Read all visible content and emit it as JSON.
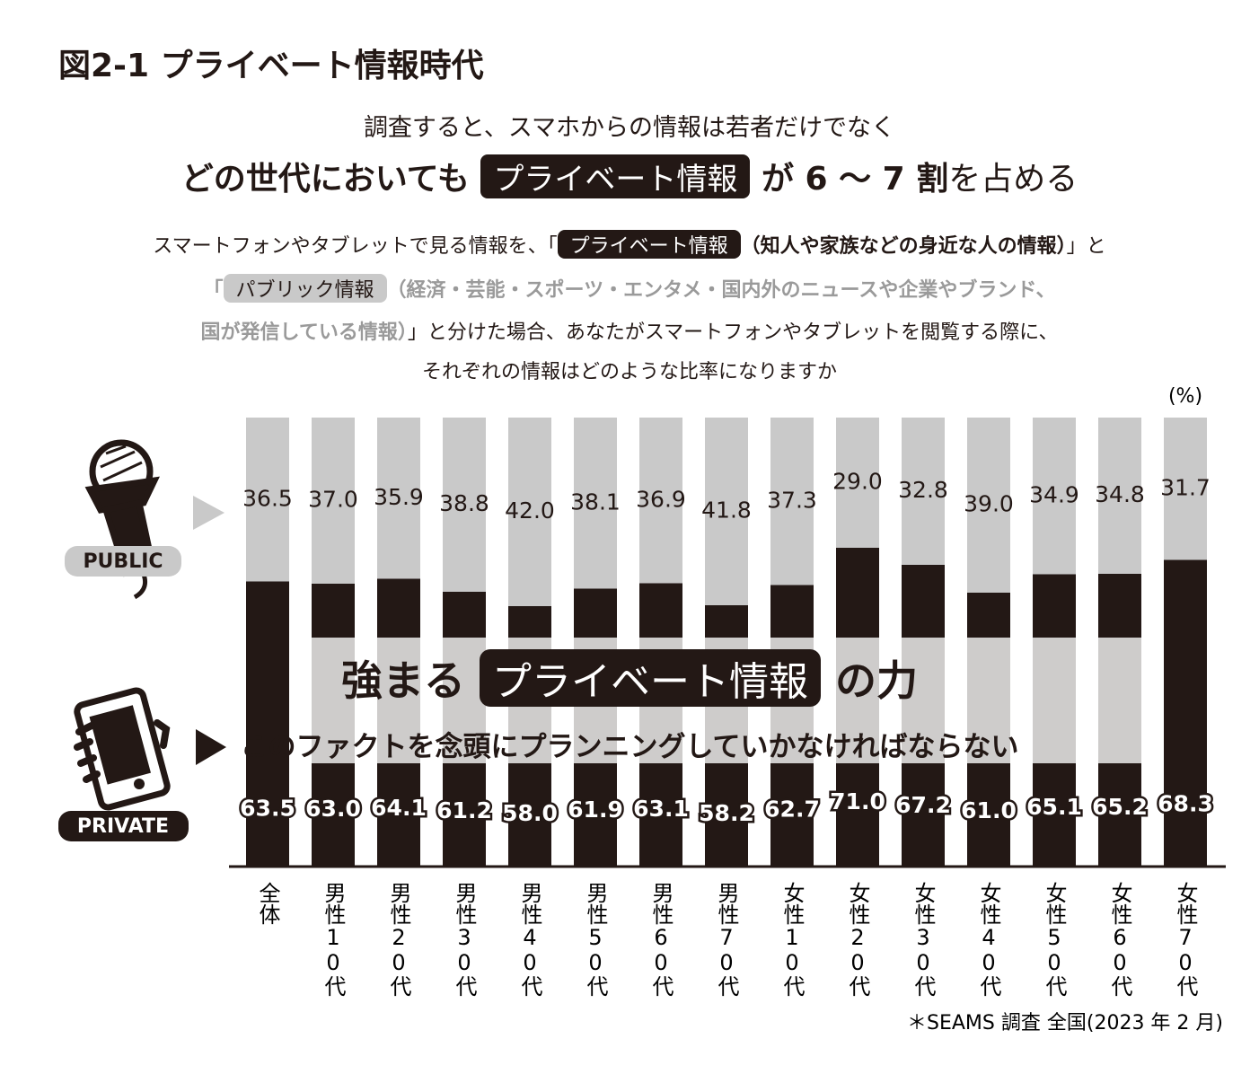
{
  "header": {
    "title": "図2-1 プライベート情報時代"
  },
  "lead": {
    "line1": "調査すると、スマホからの情報は若者だけでなく",
    "line2": [
      "どの世代においても",
      "プライベート情報",
      "が 6 ～ 7 割",
      "を占める"
    ]
  },
  "question": {
    "line1": [
      "スマートフォンやタブレットで見る情報を、「",
      "プライベート情報",
      "（知人や家族などの身近な人の情報）",
      "」と"
    ],
    "line2": [
      "「",
      "パブリック情報",
      "（経済・芸能・スポーツ・エンタメ・国内外のニュースや企業やブランド、"
    ],
    "line3": [
      "国が発信している情報）",
      "」と分けた場合、あなたがスマートフォンやタブレットを閲覧する際に、"
    ],
    "line4": "それぞれの情報はどのような比率になりますか"
  },
  "chart_data": {
    "type": "bar",
    "stacked": true,
    "categories": [
      "全体",
      "男性10代",
      "男性20代",
      "男性30代",
      "男性40代",
      "男性50代",
      "男性60代",
      "男性70代",
      "女性10代",
      "女性20代",
      "女性30代",
      "女性40代",
      "女性50代",
      "女性60代",
      "女性70代"
    ],
    "series": [
      {
        "name": "PRIVATE",
        "color": "#231815",
        "values": [
          63.5,
          63.0,
          64.1,
          61.2,
          58.0,
          61.9,
          63.1,
          58.2,
          62.7,
          71.0,
          67.2,
          61.0,
          65.1,
          65.2,
          68.3
        ],
        "value_labels": [
          "63.5",
          "63.0",
          "64.1",
          "61.2",
          "58.0",
          "61.9",
          "63.1",
          "58.2",
          "62.7",
          "71.0",
          "67.2",
          "61.0",
          "65.1",
          "65.2",
          "68.3"
        ]
      },
      {
        "name": "PUBLIC",
        "color": "#c9c9c9",
        "values": [
          36.5,
          37.0,
          35.9,
          38.8,
          42.0,
          38.1,
          36.9,
          41.8,
          37.3,
          29.0,
          32.8,
          39.0,
          34.9,
          34.8,
          31.7
        ],
        "value_labels": [
          "36.5",
          "37.0",
          "35.9",
          "38.8",
          "42.0",
          "38.1",
          "36.9",
          "41.8",
          "37.3",
          "29.0",
          "32.8",
          "39.0",
          "34.9",
          "34.8",
          "31.7"
        ]
      }
    ],
    "ylim": [
      0,
      100
    ],
    "unit": "(%)",
    "callout": {
      "headline": [
        "強まる",
        "プライベート情報",
        "の力"
      ],
      "sub": "このファクトを念頭にプランニングしていかなければならない"
    },
    "source": "＊SEAMS 調査 全国(2023 年 2 月)"
  }
}
